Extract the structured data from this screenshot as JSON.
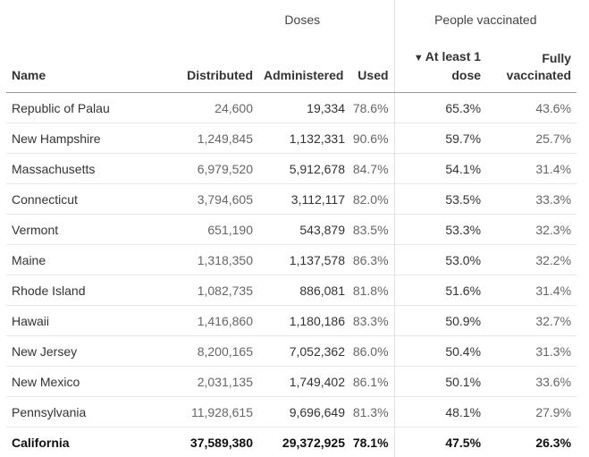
{
  "groups": {
    "doses": "Doses",
    "people": "People vaccinated"
  },
  "headers": {
    "name": "Name",
    "distributed": "Distributed",
    "administered": "Administered",
    "used": "Used",
    "sort_arrow": "▼",
    "at_least_one_line1": "At least 1",
    "at_least_one_line2": "dose",
    "fully_line1": "Fully",
    "fully_line2": "vaccinated"
  },
  "rows": [
    {
      "name": "Republic of Palau",
      "distributed": "24,600",
      "administered": "19,334",
      "used": "78.6%",
      "at_least_one": "65.3%",
      "fully": "43.6%"
    },
    {
      "name": "New Hampshire",
      "distributed": "1,249,845",
      "administered": "1,132,331",
      "used": "90.6%",
      "at_least_one": "59.7%",
      "fully": "25.7%"
    },
    {
      "name": "Massachusetts",
      "distributed": "6,979,520",
      "administered": "5,912,678",
      "used": "84.7%",
      "at_least_one": "54.1%",
      "fully": "31.4%"
    },
    {
      "name": "Connecticut",
      "distributed": "3,794,605",
      "administered": "3,112,117",
      "used": "82.0%",
      "at_least_one": "53.5%",
      "fully": "33.3%"
    },
    {
      "name": "Vermont",
      "distributed": "651,190",
      "administered": "543,879",
      "used": "83.5%",
      "at_least_one": "53.3%",
      "fully": "32.3%"
    },
    {
      "name": "Maine",
      "distributed": "1,318,350",
      "administered": "1,137,578",
      "used": "86.3%",
      "at_least_one": "53.0%",
      "fully": "32.2%"
    },
    {
      "name": "Rhode Island",
      "distributed": "1,082,735",
      "administered": "886,081",
      "used": "81.8%",
      "at_least_one": "51.6%",
      "fully": "31.4%"
    },
    {
      "name": "Hawaii",
      "distributed": "1,416,860",
      "administered": "1,180,186",
      "used": "83.3%",
      "at_least_one": "50.9%",
      "fully": "32.7%"
    },
    {
      "name": "New Jersey",
      "distributed": "8,200,165",
      "administered": "7,052,362",
      "used": "86.0%",
      "at_least_one": "50.4%",
      "fully": "31.3%"
    },
    {
      "name": "New Mexico",
      "distributed": "2,031,135",
      "administered": "1,749,402",
      "used": "86.1%",
      "at_least_one": "50.1%",
      "fully": "33.6%"
    },
    {
      "name": "Pennsylvania",
      "distributed": "11,928,615",
      "administered": "9,696,649",
      "used": "81.3%",
      "at_least_one": "48.1%",
      "fully": "27.9%"
    },
    {
      "name": "California",
      "distributed": "37,589,380",
      "administered": "29,372,925",
      "used": "78.1%",
      "at_least_one": "47.5%",
      "fully": "26.3%",
      "highlighted": true
    }
  ]
}
